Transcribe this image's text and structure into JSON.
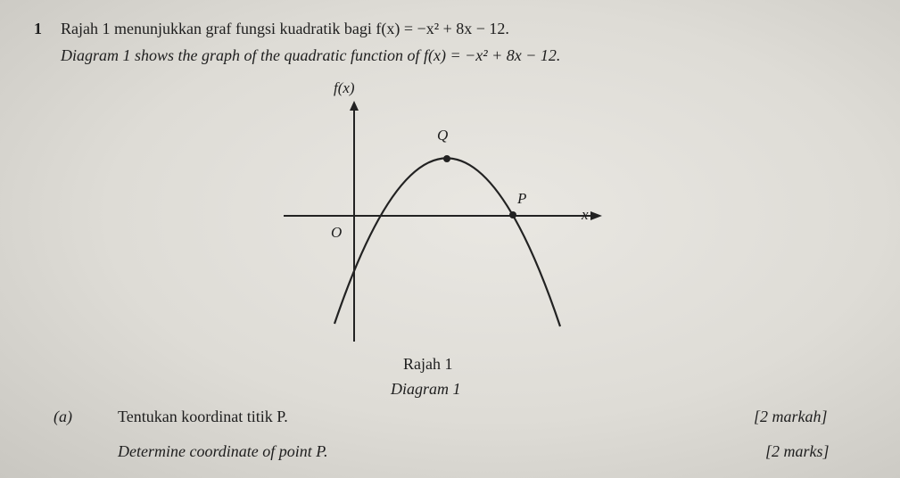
{
  "question": {
    "number": "1",
    "stem_ms": "Rajah 1 menunjukkan graf fungsi kuadratik bagi f(x) = −x² + 8x − 12.",
    "stem_en": "Diagram 1 shows the graph of the quadratic function of f(x) = −x² + 8x − 12."
  },
  "diagram": {
    "y_axis_label": "f(x)",
    "x_axis_label": "x",
    "origin_label": "O",
    "point_q": "Q",
    "point_p": "P",
    "caption_ms": "Rajah 1",
    "caption_en": "Diagram 1"
  },
  "part_a": {
    "label": "(a)",
    "text_ms": "Tentukan koordinat titik P.",
    "marks_ms": "[2 markah]",
    "text_en": "Determine coordinate of point P.",
    "marks_en": "[2 marks]"
  }
}
